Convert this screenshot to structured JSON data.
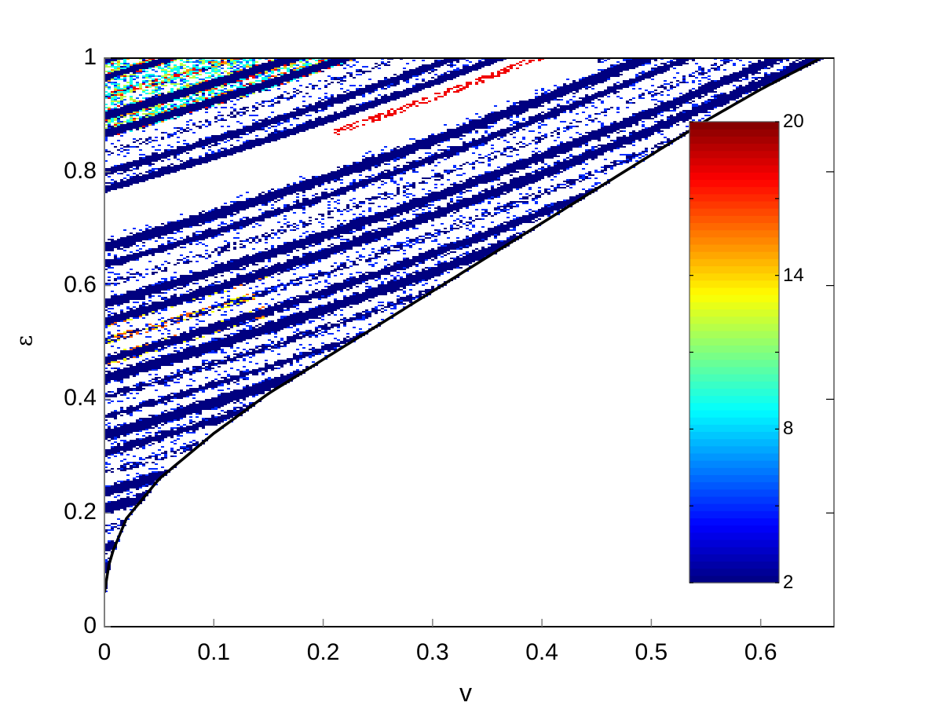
{
  "chart_data": {
    "type": "heatmap",
    "title": "",
    "xlabel": "v",
    "ylabel": "ε",
    "xlim": [
      0,
      0.667
    ],
    "ylim": [
      0,
      1
    ],
    "x_ticks": [
      0,
      0.1,
      0.2,
      0.3,
      0.4,
      0.5,
      0.6
    ],
    "x_tick_labels": [
      "0",
      "0.1",
      "0.2",
      "0.3",
      "0.4",
      "0.5",
      "0.6"
    ],
    "y_ticks": [
      0,
      0.2,
      0.4,
      0.6,
      0.8,
      1
    ],
    "y_tick_labels": [
      "0",
      "0.2",
      "0.4",
      "0.6",
      "0.8",
      "1"
    ],
    "grid": false,
    "colormap": "jet",
    "colorbar": {
      "range": [
        2,
        20
      ],
      "ticks": [
        2,
        5,
        8,
        11,
        14,
        17,
        20
      ],
      "tick_labels": [
        "2",
        "8",
        "14",
        "20"
      ],
      "labeled_ticks": [
        2,
        8,
        14,
        20
      ],
      "position": "inside-right"
    },
    "boundary_curve": {
      "description": "Black lower-right boundary of the populated region; region below/right is empty (white)",
      "points": [
        [
          0,
          0.06
        ],
        [
          0.005,
          0.12
        ],
        [
          0.02,
          0.19
        ],
        [
          0.05,
          0.26
        ],
        [
          0.1,
          0.34
        ],
        [
          0.15,
          0.41
        ],
        [
          0.2,
          0.47
        ],
        [
          0.25,
          0.53
        ],
        [
          0.3,
          0.59
        ],
        [
          0.35,
          0.65
        ],
        [
          0.4,
          0.71
        ],
        [
          0.45,
          0.77
        ],
        [
          0.5,
          0.83
        ],
        [
          0.55,
          0.89
        ],
        [
          0.6,
          0.945
        ],
        [
          0.655,
          1.0
        ]
      ]
    },
    "features": [
      {
        "description": "Dense dark-blue (value ~2) bands curving upward-right, filling between ε≈0.06 and 1",
        "value": 2
      },
      {
        "description": "Mixed cyan/yellow/red speckled bands (values 8–20) near ε 0.85–1.0 at low v",
        "value_range": [
          8,
          20
        ]
      },
      {
        "description": "White gap (no data) band near ε 0.69–0.76 at v=0, widening rightward",
        "value": null
      },
      {
        "description": "Red/orange streak near (v≈0.3–0.4, ε≈0.83–0.86)",
        "value_range": [
          16,
          20
        ]
      },
      {
        "description": "Orange/yellow speckled band near ε≈0.5 at low v",
        "value_range": [
          11,
          17
        ]
      }
    ]
  },
  "axes": {
    "xlabel": "v",
    "ylabel": "ε"
  }
}
